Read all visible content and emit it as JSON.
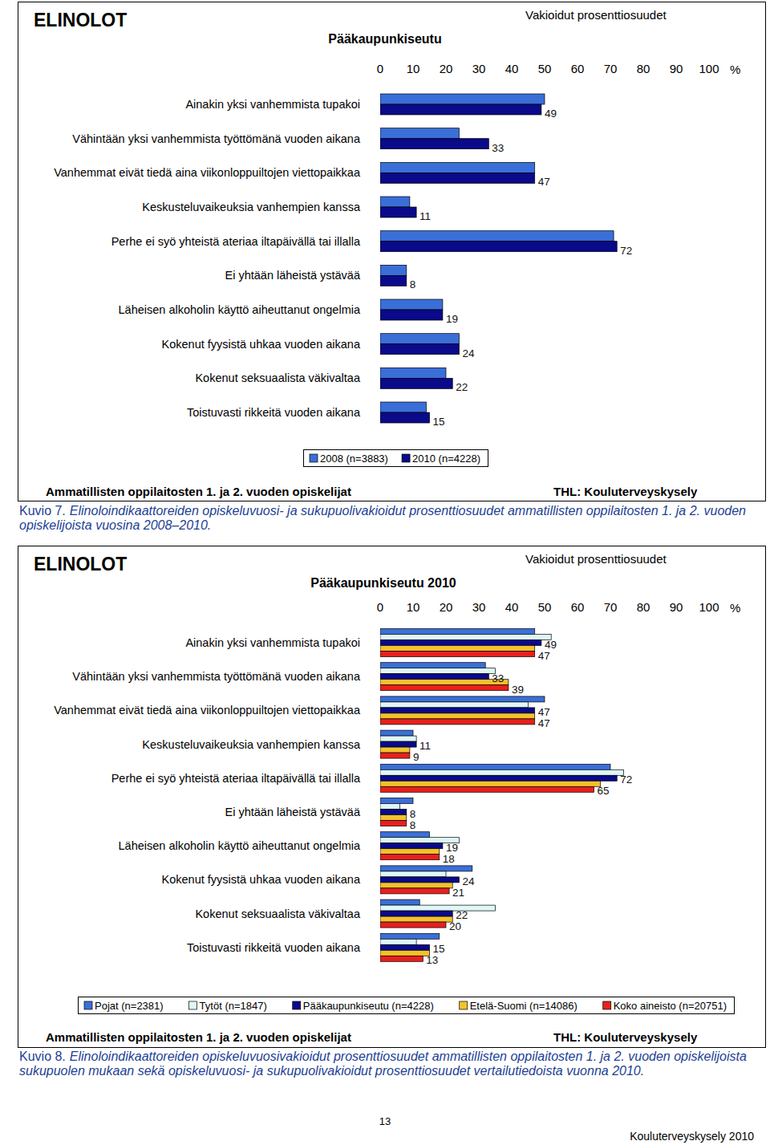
{
  "chart_data": [
    {
      "type": "bar",
      "orientation": "horizontal",
      "heading": "ELINOLOT",
      "title": "Pääkaupunkiseutu",
      "subtitle": "Vakioidut prosenttiosuudet",
      "x_label": "%",
      "note": "Ammatillisten oppilaitosten 1. ja 2. vuoden opiskelijat",
      "source": "THL: Kouluterveyskysely",
      "categories": [
        "Ainakin yksi vanhemmista tupakoi",
        "Vähintään yksi vanhemmista työttömänä vuoden aikana",
        "Vanhemmat eivät tiedä aina viikonloppuiltojen viettopaikkaa",
        "Keskusteluvaikeuksia vanhempien kanssa",
        "Perhe ei syö yhteistä ateriaa iltapäivällä tai illalla",
        "Ei yhtään läheistä ystävää",
        "Läheisen alkoholin käyttö aiheuttanut ongelmia",
        "Kokenut fyysistä uhkaa vuoden aikana",
        "Kokenut seksuaalista väkivaltaa",
        "Toistuvasti rikkeitä vuoden aikana"
      ],
      "series": [
        {
          "name": "2008 (n=3883)",
          "color": "#3a6fd8",
          "values": [
            50,
            24,
            47,
            9,
            71,
            8,
            19,
            24,
            20,
            14
          ]
        },
        {
          "name": "2010 (n=4228)",
          "color": "#0a0a8a",
          "values": [
            49,
            33,
            47,
            11,
            72,
            8,
            19,
            24,
            22,
            15
          ],
          "data_labels": true
        }
      ],
      "xlim": [
        0,
        100
      ],
      "xticks": [
        0,
        10,
        20,
        30,
        40,
        50,
        60,
        70,
        80,
        90,
        100
      ],
      "grid": false,
      "legend": "bottom"
    },
    {
      "type": "bar",
      "orientation": "horizontal",
      "heading": "ELINOLOT",
      "title": "Pääkaupunkiseutu 2010",
      "subtitle": "Vakioidut prosenttiosuudet",
      "x_label": "%",
      "note": "Ammatillisten oppilaitosten 1. ja 2. vuoden opiskelijat",
      "source": "THL: Kouluterveyskysely",
      "categories": [
        "Ainakin yksi vanhemmista tupakoi",
        "Vähintään yksi vanhemmista työttömänä vuoden aikana",
        "Vanhemmat eivät tiedä aina viikonloppuiltojen viettopaikkaa",
        "Keskusteluvaikeuksia vanhempien kanssa",
        "Perhe ei syö yhteistä ateriaa iltapäivällä tai illalla",
        "Ei yhtään läheistä ystävää",
        "Läheisen alkoholin käyttö aiheuttanut ongelmia",
        "Kokenut fyysistä uhkaa vuoden aikana",
        "Kokenut seksuaalista väkivaltaa",
        "Toistuvasti rikkeitä vuoden aikana"
      ],
      "series": [
        {
          "name": "Pojat (n=2381)",
          "color": "#3a6fd8",
          "values": [
            47,
            32,
            50,
            10,
            70,
            10,
            15,
            28,
            12,
            18
          ]
        },
        {
          "name": "Tytöt (n=1847)",
          "color": "#dff7f7",
          "values": [
            52,
            35,
            45,
            11,
            74,
            6,
            24,
            20,
            35,
            11
          ]
        },
        {
          "name": "Pääkaupunkiseutu (n=4228)",
          "color": "#0a0a8a",
          "values": [
            49,
            33,
            47,
            11,
            72,
            8,
            19,
            24,
            22,
            15
          ],
          "data_labels": true
        },
        {
          "name": "Etelä-Suomi (n=14086)",
          "color": "#f2c12e",
          "values": [
            47,
            39,
            47,
            9,
            67,
            8,
            18,
            22,
            22,
            15
          ]
        },
        {
          "name": "Koko aineisto (n=20751)",
          "color": "#e8201c",
          "values": [
            47,
            39,
            47,
            9,
            65,
            8,
            18,
            21,
            20,
            13
          ],
          "data_labels": true
        }
      ],
      "xlim": [
        0,
        100
      ],
      "xticks": [
        0,
        10,
        20,
        30,
        40,
        50,
        60,
        70,
        80,
        90,
        100
      ],
      "grid": false,
      "legend": "bottom"
    }
  ],
  "captions": [
    {
      "label": "Kuvio 7.",
      "text": "Elinoloindikaattoreiden opiskeluvuosi- ja sukupuolivakioidut prosenttiosuudet ammatillisten oppilaitosten 1. ja 2. vuoden opiskelijoista vuosina 2008–2010."
    },
    {
      "label": "Kuvio 8.",
      "text": "Elinoloindikaattoreiden opiskeluvuosivakioidut prosenttiosuudet ammatillisten oppilaitosten 1. ja 2. vuoden opiskelijoista sukupuolen mukaan sekä opiskeluvuosi- ja sukupuolivakioidut prosenttiosuudet vertailutiedoista vuonna 2010."
    }
  ],
  "page_number": "13",
  "footer": "Kouluterveyskysely 2010"
}
